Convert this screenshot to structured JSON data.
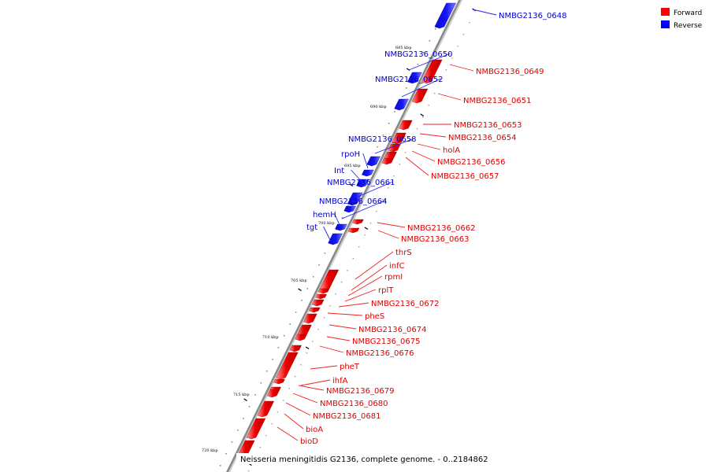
{
  "caption": "Neisseria meningitidis G2136, complete genome. - 0..2184862",
  "legend": [
    {
      "label": "Forward",
      "color": "#ff0000"
    },
    {
      "label": "Reverse",
      "color": "#0000ff"
    }
  ],
  "colors": {
    "forward": "#ee0000",
    "reverse": "#1111ee",
    "forward_label": "#dd0000",
    "reverse_label": "#0000cc",
    "backbone": "#888888"
  },
  "ticks": [
    "685 kbp",
    "690 kbp",
    "695 kbp",
    "700 kbp",
    "705 kbp",
    "710 kbp",
    "715 kbp",
    "720 kbp"
  ],
  "genes": [
    {
      "name": "NMBG2136_0648",
      "strand": "reverse"
    },
    {
      "name": "NMBG2136_0649",
      "strand": "forward"
    },
    {
      "name": "NMBG2136_0650",
      "strand": "reverse"
    },
    {
      "name": "NMBG2136_0651",
      "strand": "forward"
    },
    {
      "name": "NMBG2136_0652",
      "strand": "reverse"
    },
    {
      "name": "NMBG2136_0653",
      "strand": "forward"
    },
    {
      "name": "NMBG2136_0654",
      "strand": "forward"
    },
    {
      "name": "holA",
      "strand": "forward"
    },
    {
      "name": "NMBG2136_0656",
      "strand": "forward"
    },
    {
      "name": "NMBG2136_0657",
      "strand": "forward"
    },
    {
      "name": "NMBG2136_0658",
      "strand": "reverse"
    },
    {
      "name": "rpoH",
      "strand": "reverse"
    },
    {
      "name": "Int",
      "strand": "reverse"
    },
    {
      "name": "NMBG2136_0661",
      "strand": "reverse"
    },
    {
      "name": "NMBG2136_0664",
      "strand": "reverse"
    },
    {
      "name": "hemH",
      "strand": "reverse"
    },
    {
      "name": "tgt",
      "strand": "reverse"
    },
    {
      "name": "NMBG2136_0662",
      "strand": "forward"
    },
    {
      "name": "NMBG2136_0663",
      "strand": "forward"
    },
    {
      "name": "thrS",
      "strand": "forward"
    },
    {
      "name": "infC",
      "strand": "forward"
    },
    {
      "name": "rpmI",
      "strand": "forward"
    },
    {
      "name": "rplT",
      "strand": "forward"
    },
    {
      "name": "NMBG2136_0672",
      "strand": "forward"
    },
    {
      "name": "pheS",
      "strand": "forward"
    },
    {
      "name": "NMBG2136_0674",
      "strand": "forward"
    },
    {
      "name": "NMBG2136_0675",
      "strand": "forward"
    },
    {
      "name": "NMBG2136_0676",
      "strand": "forward"
    },
    {
      "name": "pheT",
      "strand": "forward"
    },
    {
      "name": "ihfA",
      "strand": "forward"
    },
    {
      "name": "NMBG2136_0679",
      "strand": "forward"
    },
    {
      "name": "NMBG2136_0680",
      "strand": "forward"
    },
    {
      "name": "NMBG2136_0681",
      "strand": "forward"
    },
    {
      "name": "bioA",
      "strand": "forward"
    },
    {
      "name": "bioD",
      "strand": "forward"
    }
  ]
}
